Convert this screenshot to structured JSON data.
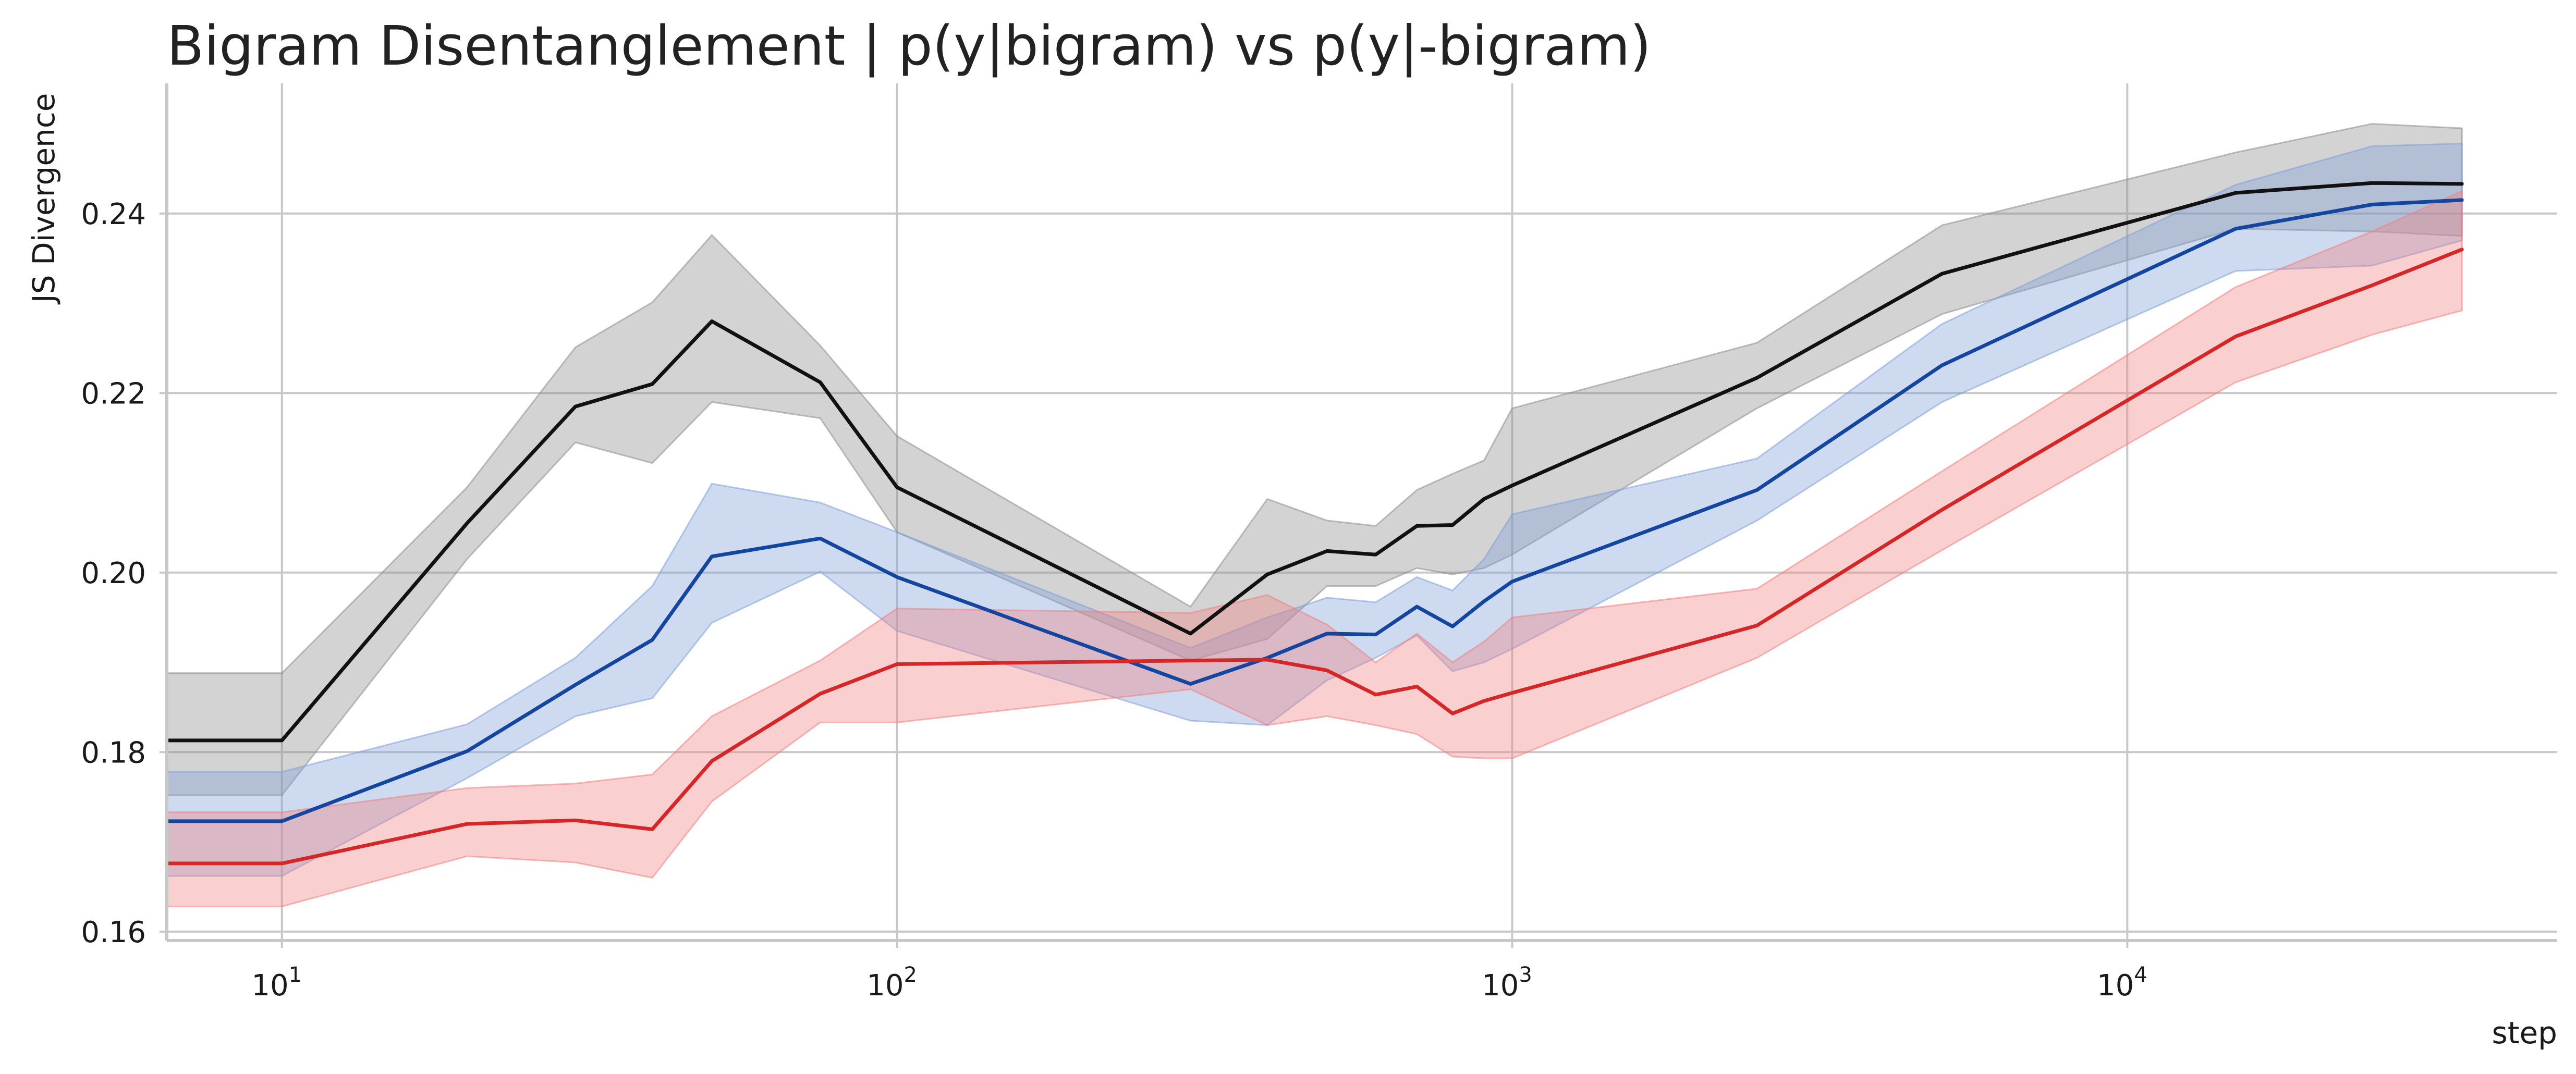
{
  "chart_data": {
    "type": "line",
    "title": "Bigram Disentanglement |  p(y|bigram) vs p(y|-bigram)",
    "xlabel": "step",
    "ylabel": "JS Divergence",
    "xscale": "log",
    "xlim": [
      6.5,
      50000
    ],
    "ylim": [
      0.159,
      0.2545
    ],
    "x_ticks": [
      {
        "value": 10,
        "base": "10",
        "exp": "1"
      },
      {
        "value": 100,
        "base": "10",
        "exp": "2"
      },
      {
        "value": 1000,
        "base": "10",
        "exp": "3"
      },
      {
        "value": 10000,
        "base": "10",
        "exp": "4"
      }
    ],
    "y_ticks": [
      {
        "value": 0.16,
        "label": "0.16"
      },
      {
        "value": 0.18,
        "label": "0.18"
      },
      {
        "value": 0.2,
        "label": "0.20"
      },
      {
        "value": 0.22,
        "label": "0.22"
      },
      {
        "value": 0.24,
        "label": "0.24"
      }
    ],
    "grid": true,
    "series": [
      {
        "name": "black",
        "color": "#111111",
        "band_color": "#8c8c8c",
        "x": [
          6.5,
          10,
          20,
          30,
          40,
          50,
          75,
          100,
          300,
          400,
          500,
          600,
          700,
          800,
          900,
          1000,
          2500,
          5000,
          15000,
          25000,
          35000
        ],
        "y": [
          0.1813,
          0.1813,
          0.2055,
          0.2185,
          0.221,
          0.228,
          0.2212,
          0.2095,
          0.1932,
          0.1998,
          0.2024,
          0.202,
          0.2052,
          0.2053,
          0.2082,
          0.2097,
          0.2217,
          0.2333,
          0.2423,
          0.2434,
          0.2433
        ],
        "lower": [
          0.1752,
          0.1752,
          0.2015,
          0.2145,
          0.2122,
          0.219,
          0.2172,
          0.2045,
          0.1902,
          0.1926,
          0.1985,
          0.1985,
          0.2005,
          0.1998,
          0.2005,
          0.202,
          0.2183,
          0.2288,
          0.2383,
          0.238,
          0.2375
        ],
        "upper": [
          0.1888,
          0.1888,
          0.2095,
          0.2251,
          0.2301,
          0.2376,
          0.2253,
          0.2152,
          0.1962,
          0.2082,
          0.2058,
          0.2052,
          0.2092,
          0.211,
          0.2125,
          0.2183,
          0.2256,
          0.2387,
          0.2468,
          0.25,
          0.2495
        ]
      },
      {
        "name": "blue",
        "color": "#1446a0",
        "band_color": "#7f9fd8",
        "x": [
          6.5,
          10,
          20,
          30,
          40,
          50,
          75,
          100,
          300,
          400,
          500,
          600,
          700,
          800,
          900,
          1000,
          2500,
          5000,
          15000,
          25000,
          35000
        ],
        "y": [
          0.1723,
          0.1723,
          0.1801,
          0.1875,
          0.1925,
          0.2018,
          0.2038,
          0.1995,
          0.1876,
          0.1905,
          0.1932,
          0.1931,
          0.1962,
          0.194,
          0.1968,
          0.199,
          0.2092,
          0.2231,
          0.2383,
          0.241,
          0.2415
        ],
        "lower": [
          0.1662,
          0.1662,
          0.1771,
          0.184,
          0.186,
          0.1944,
          0.2001,
          0.1935,
          0.1835,
          0.183,
          0.188,
          0.1905,
          0.193,
          0.189,
          0.19,
          0.1915,
          0.2058,
          0.219,
          0.2336,
          0.2342,
          0.237
        ],
        "upper": [
          0.1778,
          0.1778,
          0.1831,
          0.1905,
          0.1985,
          0.2099,
          0.2078,
          0.2045,
          0.1916,
          0.195,
          0.1972,
          0.1967,
          0.1995,
          0.198,
          0.2015,
          0.2065,
          0.2127,
          0.2277,
          0.2432,
          0.2475,
          0.2478
        ]
      },
      {
        "name": "red",
        "color": "#d62728",
        "band_color": "#f08080",
        "x": [
          6.5,
          10,
          20,
          30,
          40,
          50,
          75,
          100,
          300,
          400,
          500,
          600,
          700,
          800,
          900,
          1000,
          2500,
          5000,
          15000,
          25000,
          35000
        ],
        "y": [
          0.1676,
          0.1676,
          0.172,
          0.1724,
          0.1714,
          0.179,
          0.1865,
          0.1898,
          0.1902,
          0.1903,
          0.1891,
          0.1864,
          0.1873,
          0.1843,
          0.1857,
          0.1866,
          0.1941,
          0.207,
          0.2263,
          0.232,
          0.236
        ],
        "lower": [
          0.1628,
          0.1628,
          0.1684,
          0.1677,
          0.166,
          0.1745,
          0.1833,
          0.1833,
          0.187,
          0.183,
          0.184,
          0.183,
          0.182,
          0.1795,
          0.1793,
          0.1793,
          0.1905,
          0.2025,
          0.2212,
          0.2265,
          0.2292
        ],
        "upper": [
          0.1733,
          0.1733,
          0.176,
          0.1765,
          0.1775,
          0.184,
          0.1902,
          0.196,
          0.1955,
          0.1975,
          0.1942,
          0.19,
          0.1932,
          0.19,
          0.1923,
          0.195,
          0.1982,
          0.2113,
          0.2318,
          0.238,
          0.2425
        ]
      }
    ]
  }
}
